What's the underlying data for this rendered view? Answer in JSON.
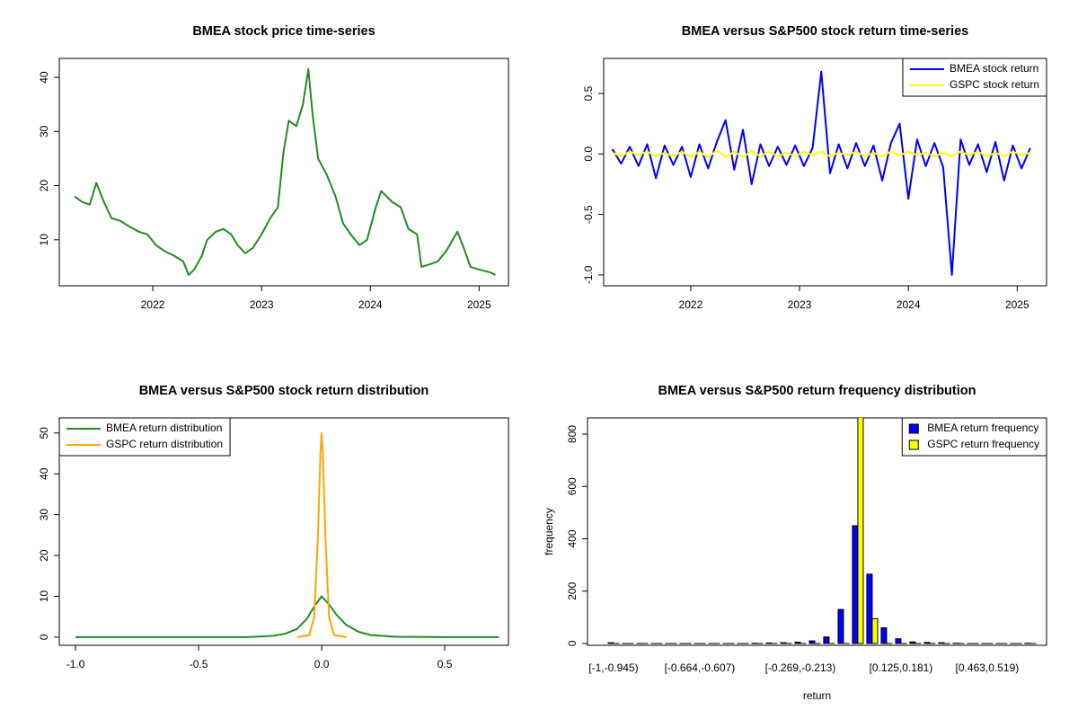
{
  "chart_data": [
    {
      "type": "line",
      "title": "BMEA stock price time-series",
      "x": [
        2021.28,
        2021.35,
        2021.42,
        2021.48,
        2021.55,
        2021.62,
        2021.7,
        2021.78,
        2021.87,
        2021.95,
        2022.03,
        2022.1,
        2022.2,
        2022.28,
        2022.33,
        2022.38,
        2022.45,
        2022.5,
        2022.58,
        2022.65,
        2022.72,
        2022.78,
        2022.85,
        2022.92,
        2023,
        2023.08,
        2023.15,
        2023.2,
        2023.25,
        2023.32,
        2023.38,
        2023.43,
        2023.47,
        2023.52,
        2023.6,
        2023.68,
        2023.75,
        2023.82,
        2023.9,
        2023.97,
        2024.05,
        2024.1,
        2024.2,
        2024.28,
        2024.35,
        2024.43,
        2024.47,
        2024.55,
        2024.62,
        2024.7,
        2024.8,
        2024.85,
        2024.92,
        2025,
        2025.1,
        2025.15
      ],
      "series": [
        {
          "color": "#228b22",
          "values": [
            18,
            17,
            16.5,
            20.5,
            17,
            14,
            13.5,
            12.5,
            11.5,
            11,
            9,
            8,
            7,
            6,
            3.5,
            4.5,
            7,
            10,
            11.5,
            12,
            11,
            9,
            7.5,
            8.5,
            11,
            14,
            16,
            26,
            32,
            31,
            35,
            41.5,
            33,
            25,
            22,
            18,
            13,
            11,
            9,
            10,
            16,
            19,
            17,
            16,
            12,
            11,
            5,
            5.5,
            6,
            8,
            11.5,
            9,
            5,
            4.5,
            4,
            3.5
          ]
        }
      ],
      "xlim": [
        2021.14,
        2025.27
      ],
      "xticks": [
        2022,
        2023,
        2024,
        2025
      ],
      "ylim": [
        1.5,
        43.5
      ],
      "yticks": [
        10,
        20,
        30,
        40
      ]
    },
    {
      "type": "line",
      "title": "BMEA versus S&P500 stock return time-series",
      "x": [
        2021.28,
        2021.36,
        2021.44,
        2021.52,
        2021.6,
        2021.68,
        2021.76,
        2021.84,
        2021.92,
        2022,
        2022.08,
        2022.16,
        2022.24,
        2022.32,
        2022.4,
        2022.48,
        2022.56,
        2022.64,
        2022.72,
        2022.8,
        2022.88,
        2022.96,
        2023.04,
        2023.12,
        2023.2,
        2023.28,
        2023.36,
        2023.44,
        2023.52,
        2023.6,
        2023.68,
        2023.76,
        2023.84,
        2023.92,
        2024,
        2024.08,
        2024.16,
        2024.24,
        2024.32,
        2024.4,
        2024.48,
        2024.56,
        2024.64,
        2024.72,
        2024.8,
        2024.88,
        2024.96,
        2025.04,
        2025.12
      ],
      "series": [
        {
          "name": "BMEA stock return",
          "color": "#0000ff",
          "values": [
            0.04,
            -0.08,
            0.06,
            -0.1,
            0.08,
            -0.2,
            0.07,
            -0.09,
            0.06,
            -0.19,
            0.08,
            -0.12,
            0.1,
            0.28,
            -0.13,
            0.2,
            -0.25,
            0.08,
            -0.1,
            0.06,
            -0.09,
            0.07,
            -0.1,
            0.05,
            0.68,
            -0.16,
            0.08,
            -0.12,
            0.09,
            -0.1,
            0.07,
            -0.22,
            0.09,
            0.25,
            -0.37,
            0.12,
            -0.1,
            0.09,
            -0.11,
            -1.0,
            0.12,
            -0.09,
            0.08,
            -0.15,
            0.1,
            -0.22,
            0.07,
            -0.12,
            0.05
          ]
        },
        {
          "name": "GSPC stock return",
          "color": "#ffff00",
          "values": [
            0.01,
            -0.02,
            0.02,
            -0.01,
            0.02,
            -0.02,
            0.01,
            -0.02,
            0.02,
            -0.03,
            0.02,
            -0.03,
            0.03,
            -0.03,
            0.02,
            -0.03,
            0.03,
            -0.02,
            0.02,
            -0.02,
            0.01,
            -0.02,
            0.02,
            -0.01,
            0.02,
            -0.02,
            0.01,
            -0.01,
            0.02,
            -0.02,
            0.01,
            -0.02,
            0.02,
            -0.01,
            0.02,
            -0.01,
            0.01,
            -0.02,
            0.01,
            -0.02,
            0.02,
            -0.01,
            0.02,
            -0.02,
            0.01,
            -0.02,
            0.02,
            -0.01,
            0.01
          ]
        }
      ],
      "xlim": [
        2021.2,
        2025.27
      ],
      "xticks": [
        2022,
        2023,
        2024,
        2025
      ],
      "ylim": [
        -1.09,
        0.79
      ],
      "yticks": [
        {
          "value": -1,
          "label": "-1.0"
        },
        -0.5,
        {
          "value": 0,
          "label": "0.0"
        },
        0.5
      ],
      "legend": "topright"
    },
    {
      "type": "line",
      "title": "BMEA versus S&P500 stock return distribution",
      "series": [
        {
          "name": "BMEA return distribution",
          "color": "#228b22",
          "x": [
            -1,
            -0.3,
            -0.2,
            -0.15,
            -0.1,
            -0.06,
            -0.03,
            0,
            0.03,
            0.06,
            0.1,
            0.15,
            0.2,
            0.3,
            0.5,
            0.72
          ],
          "values": [
            0,
            0,
            0.3,
            0.8,
            2,
            4.5,
            7.5,
            10,
            8,
            5.5,
            3,
            1.3,
            0.5,
            0.1,
            0,
            0
          ]
        },
        {
          "name": "GSPC return distribution",
          "color": "#ffa500",
          "x": [
            -0.1,
            -0.05,
            -0.03,
            -0.015,
            -0.005,
            0,
            0.005,
            0.015,
            0.03,
            0.05,
            0.1
          ],
          "values": [
            0,
            0.5,
            5,
            25,
            45,
            50,
            45,
            25,
            5,
            0.5,
            0
          ]
        }
      ],
      "xlim": [
        -1.066,
        0.759
      ],
      "xticks": [
        {
          "value": -1,
          "label": "-1.0"
        },
        -0.5,
        {
          "value": 0,
          "label": "0.0"
        },
        0.5
      ],
      "ylim": [
        -2,
        53.7
      ],
      "yticks": [
        0,
        10,
        20,
        30,
        40,
        50
      ],
      "legend": "topleft"
    },
    {
      "type": "bar",
      "title": "BMEA versus S&P500 return frequency distribution",
      "xlabel": "return",
      "ylabel": "frequency",
      "categories": [
        "[-1,-0.945)",
        null,
        null,
        null,
        null,
        null,
        "[-0.664,-0.607)",
        null,
        null,
        null,
        null,
        null,
        null,
        "[-0.269,-0.213)",
        null,
        null,
        null,
        null,
        null,
        null,
        "[0.125,0.181)",
        null,
        null,
        null,
        null,
        null,
        "[0.463,0.519)",
        null,
        null,
        null
      ],
      "series": [
        {
          "name": "BMEA return frequency",
          "color": "#0000ff",
          "values": [
            3,
            0,
            0,
            0,
            0,
            0,
            0,
            0,
            0,
            0,
            1,
            2,
            3,
            5,
            10,
            25,
            130,
            450,
            265,
            60,
            18,
            6,
            4,
            3,
            1,
            0,
            0,
            0,
            0,
            1
          ]
        },
        {
          "name": "GSPC return frequency",
          "color": "#ffff00",
          "values": [
            0,
            0,
            0,
            0,
            0,
            0,
            0,
            0,
            0,
            0,
            0,
            0,
            0,
            0,
            0,
            0,
            0,
            880,
            95,
            0,
            0,
            0,
            0,
            0,
            0,
            0,
            0,
            0,
            0,
            0
          ]
        }
      ],
      "ylim": [
        -7,
        862
      ],
      "yticks": [
        0,
        200,
        400,
        600,
        800
      ],
      "legend": "topright"
    }
  ]
}
